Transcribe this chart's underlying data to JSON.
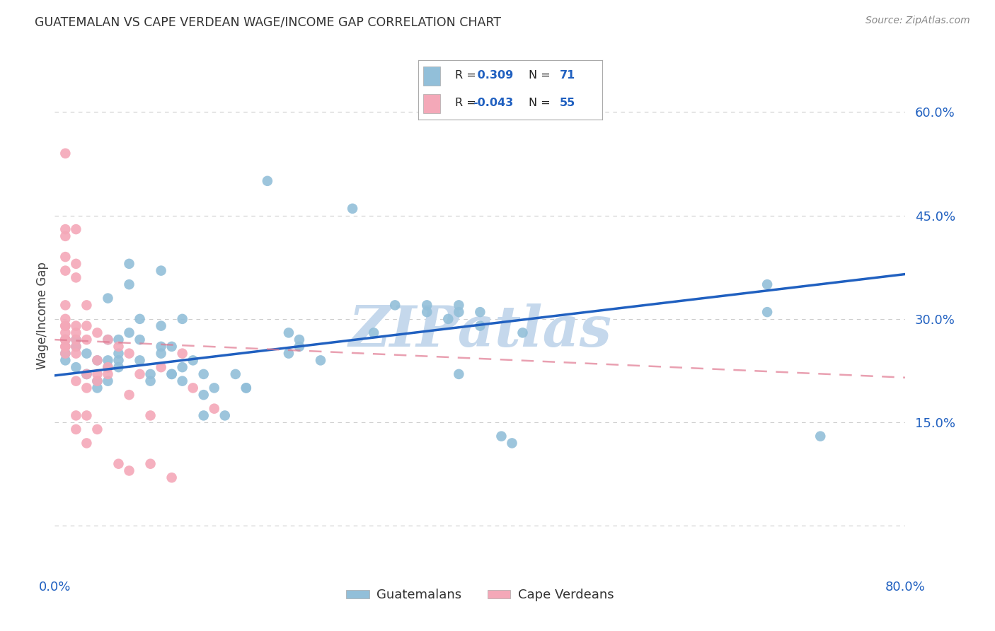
{
  "title": "GUATEMALAN VS CAPE VERDEAN WAGE/INCOME GAP CORRELATION CHART",
  "source": "Source: ZipAtlas.com",
  "ylabel": "Wage/Income Gap",
  "watermark": "ZIPatlas",
  "xmin": 0.0,
  "xmax": 0.8,
  "ymin": -0.07,
  "ymax": 0.68,
  "yticks": [
    0.0,
    0.15,
    0.3,
    0.45,
    0.6
  ],
  "ytick_labels": [
    "",
    "15.0%",
    "30.0%",
    "45.0%",
    "60.0%"
  ],
  "xticks": [
    0.0,
    0.2,
    0.4,
    0.6,
    0.8
  ],
  "xtick_labels": [
    "0.0%",
    "",
    "",
    "",
    "80.0%"
  ],
  "blue_R": 0.309,
  "blue_N": 71,
  "pink_R": -0.043,
  "pink_N": 55,
  "blue_color": "#92BFD9",
  "pink_color": "#F4A8B8",
  "blue_line_color": "#2060C0",
  "pink_line_color": "#E07890",
  "blue_scatter": [
    [
      0.01,
      0.27
    ],
    [
      0.01,
      0.25
    ],
    [
      0.01,
      0.24
    ],
    [
      0.02,
      0.26
    ],
    [
      0.02,
      0.23
    ],
    [
      0.02,
      0.27
    ],
    [
      0.03,
      0.25
    ],
    [
      0.03,
      0.22
    ],
    [
      0.03,
      0.22
    ],
    [
      0.04,
      0.24
    ],
    [
      0.04,
      0.21
    ],
    [
      0.04,
      0.2
    ],
    [
      0.05,
      0.33
    ],
    [
      0.05,
      0.27
    ],
    [
      0.05,
      0.24
    ],
    [
      0.05,
      0.23
    ],
    [
      0.05,
      0.21
    ],
    [
      0.06,
      0.27
    ],
    [
      0.06,
      0.25
    ],
    [
      0.06,
      0.24
    ],
    [
      0.06,
      0.23
    ],
    [
      0.07,
      0.38
    ],
    [
      0.07,
      0.35
    ],
    [
      0.07,
      0.28
    ],
    [
      0.08,
      0.3
    ],
    [
      0.08,
      0.27
    ],
    [
      0.08,
      0.24
    ],
    [
      0.09,
      0.22
    ],
    [
      0.09,
      0.21
    ],
    [
      0.1,
      0.37
    ],
    [
      0.1,
      0.29
    ],
    [
      0.1,
      0.26
    ],
    [
      0.1,
      0.25
    ],
    [
      0.11,
      0.26
    ],
    [
      0.11,
      0.22
    ],
    [
      0.11,
      0.22
    ],
    [
      0.12,
      0.3
    ],
    [
      0.12,
      0.23
    ],
    [
      0.12,
      0.21
    ],
    [
      0.13,
      0.24
    ],
    [
      0.14,
      0.22
    ],
    [
      0.14,
      0.19
    ],
    [
      0.14,
      0.16
    ],
    [
      0.15,
      0.2
    ],
    [
      0.16,
      0.16
    ],
    [
      0.17,
      0.22
    ],
    [
      0.18,
      0.2
    ],
    [
      0.18,
      0.2
    ],
    [
      0.2,
      0.5
    ],
    [
      0.22,
      0.28
    ],
    [
      0.22,
      0.25
    ],
    [
      0.23,
      0.27
    ],
    [
      0.23,
      0.26
    ],
    [
      0.25,
      0.24
    ],
    [
      0.28,
      0.46
    ],
    [
      0.3,
      0.28
    ],
    [
      0.32,
      0.32
    ],
    [
      0.35,
      0.32
    ],
    [
      0.35,
      0.31
    ],
    [
      0.37,
      0.3
    ],
    [
      0.38,
      0.32
    ],
    [
      0.38,
      0.31
    ],
    [
      0.38,
      0.22
    ],
    [
      0.4,
      0.31
    ],
    [
      0.4,
      0.29
    ],
    [
      0.42,
      0.13
    ],
    [
      0.43,
      0.12
    ],
    [
      0.44,
      0.28
    ],
    [
      0.67,
      0.35
    ],
    [
      0.67,
      0.31
    ],
    [
      0.72,
      0.13
    ]
  ],
  "pink_scatter": [
    [
      0.01,
      0.54
    ],
    [
      0.01,
      0.43
    ],
    [
      0.01,
      0.42
    ],
    [
      0.01,
      0.39
    ],
    [
      0.01,
      0.37
    ],
    [
      0.01,
      0.32
    ],
    [
      0.01,
      0.3
    ],
    [
      0.01,
      0.29
    ],
    [
      0.01,
      0.29
    ],
    [
      0.01,
      0.28
    ],
    [
      0.01,
      0.27
    ],
    [
      0.01,
      0.27
    ],
    [
      0.01,
      0.27
    ],
    [
      0.01,
      0.26
    ],
    [
      0.01,
      0.26
    ],
    [
      0.01,
      0.25
    ],
    [
      0.02,
      0.43
    ],
    [
      0.02,
      0.38
    ],
    [
      0.02,
      0.36
    ],
    [
      0.02,
      0.29
    ],
    [
      0.02,
      0.28
    ],
    [
      0.02,
      0.27
    ],
    [
      0.02,
      0.26
    ],
    [
      0.02,
      0.25
    ],
    [
      0.02,
      0.21
    ],
    [
      0.02,
      0.16
    ],
    [
      0.02,
      0.14
    ],
    [
      0.03,
      0.32
    ],
    [
      0.03,
      0.29
    ],
    [
      0.03,
      0.27
    ],
    [
      0.03,
      0.22
    ],
    [
      0.03,
      0.2
    ],
    [
      0.03,
      0.16
    ],
    [
      0.03,
      0.12
    ],
    [
      0.04,
      0.28
    ],
    [
      0.04,
      0.24
    ],
    [
      0.04,
      0.22
    ],
    [
      0.04,
      0.21
    ],
    [
      0.04,
      0.14
    ],
    [
      0.05,
      0.27
    ],
    [
      0.05,
      0.23
    ],
    [
      0.05,
      0.22
    ],
    [
      0.06,
      0.26
    ],
    [
      0.06,
      0.09
    ],
    [
      0.07,
      0.25
    ],
    [
      0.07,
      0.19
    ],
    [
      0.07,
      0.08
    ],
    [
      0.08,
      0.22
    ],
    [
      0.09,
      0.16
    ],
    [
      0.09,
      0.09
    ],
    [
      0.1,
      0.23
    ],
    [
      0.11,
      0.07
    ],
    [
      0.12,
      0.25
    ],
    [
      0.13,
      0.2
    ],
    [
      0.15,
      0.17
    ]
  ],
  "blue_trend_x": [
    0.0,
    0.8
  ],
  "blue_trend_y": [
    0.218,
    0.365
  ],
  "pink_trend_x": [
    0.0,
    0.8
  ],
  "pink_trend_y": [
    0.27,
    0.215
  ],
  "legend_labels": [
    "Guatemalans",
    "Cape Verdeans"
  ],
  "grid_color": "#CCCCCC",
  "background_color": "#FFFFFF",
  "watermark_color": "#C5D8EC",
  "title_color": "#333333",
  "tick_color": "#2060C0"
}
